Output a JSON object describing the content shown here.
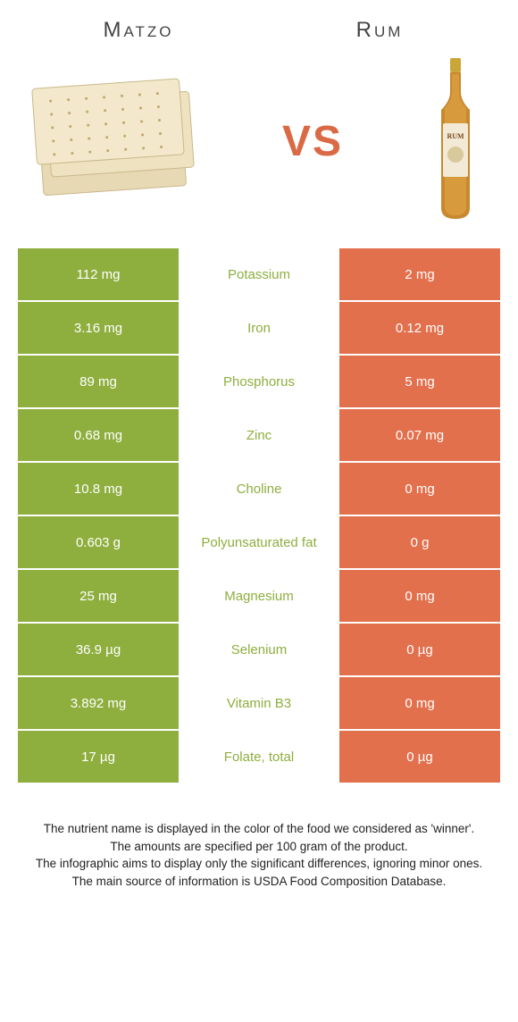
{
  "header": {
    "left_title": "Matzo",
    "right_title": "Rum",
    "vs_label": "VS"
  },
  "colors": {
    "left_bg": "#8eae3e",
    "right_bg": "#e2704d",
    "left_text": "#8eae3e",
    "right_text": "#e2704d",
    "vs_color": "#da6a45"
  },
  "rows": [
    {
      "left": "112 mg",
      "name": "Potassium",
      "right": "2 mg",
      "winner": "left"
    },
    {
      "left": "3.16 mg",
      "name": "Iron",
      "right": "0.12 mg",
      "winner": "left"
    },
    {
      "left": "89 mg",
      "name": "Phosphorus",
      "right": "5 mg",
      "winner": "left"
    },
    {
      "left": "0.68 mg",
      "name": "Zinc",
      "right": "0.07 mg",
      "winner": "left"
    },
    {
      "left": "10.8 mg",
      "name": "Choline",
      "right": "0 mg",
      "winner": "left"
    },
    {
      "left": "0.603 g",
      "name": "Polyunsaturated fat",
      "right": "0 g",
      "winner": "left"
    },
    {
      "left": "25 mg",
      "name": "Magnesium",
      "right": "0 mg",
      "winner": "left"
    },
    {
      "left": "36.9 µg",
      "name": "Selenium",
      "right": "0 µg",
      "winner": "left"
    },
    {
      "left": "3.892 mg",
      "name": "Vitamin B3",
      "right": "0 mg",
      "winner": "left"
    },
    {
      "left": "17 µg",
      "name": "Folate, total",
      "right": "0 µg",
      "winner": "left"
    }
  ],
  "footer": {
    "line1": "The nutrient name is displayed in the color of the food we considered as 'winner'.",
    "line2": "The amounts are specified per 100 gram of the product.",
    "line3": "The infographic aims to display only the significant differences, ignoring minor ones.",
    "line4": "The main source of information is USDA Food Composition Database."
  }
}
